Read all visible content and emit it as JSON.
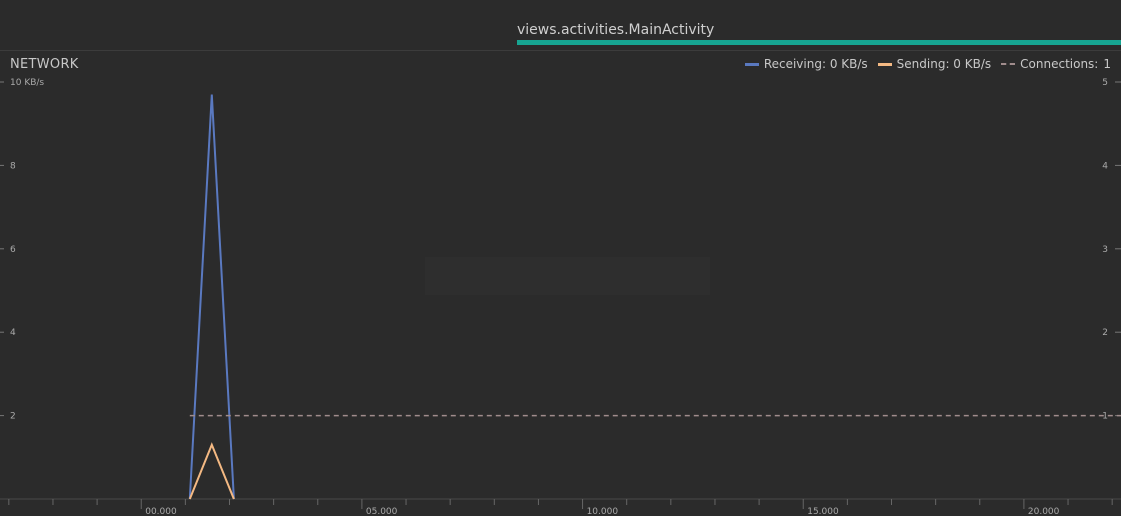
{
  "header": {
    "activity": "views.activities.MainActivity"
  },
  "colors": {
    "receiving": "#5a79c0",
    "sending": "#f4b983",
    "connections": "#a08c8c",
    "activity_bar": "#17a592"
  },
  "legend": {
    "receiving": "Receiving: 0 KB/s",
    "sending": "Sending: 0 KB/s",
    "connections_label": "Connections:",
    "connections_value": "1"
  },
  "chart_data": {
    "type": "line",
    "title": "NETWORK",
    "left_axis": {
      "ylim": [
        0,
        12
      ],
      "ticks": [
        {
          "value": 2,
          "label": "2"
        },
        {
          "value": 4,
          "label": "4"
        },
        {
          "value": 6,
          "label": "6"
        },
        {
          "value": 8,
          "label": "8"
        },
        {
          "value": 10,
          "label": "10 KB/s"
        }
      ]
    },
    "right_axis": {
      "ylim": [
        0,
        5
      ],
      "ticks": [
        {
          "value": 1,
          "label": "1"
        },
        {
          "value": 2,
          "label": "2"
        },
        {
          "value": 3,
          "label": "3"
        },
        {
          "value": 4,
          "label": "4"
        },
        {
          "value": 5,
          "label": "5"
        }
      ]
    },
    "x_axis": {
      "range": [
        -3.2,
        22.2
      ],
      "major_ticks": [
        {
          "value": 0,
          "label": "00.000"
        },
        {
          "value": 5,
          "label": "05.000"
        },
        {
          "value": 10,
          "label": "10.000"
        },
        {
          "value": 15,
          "label": "15.000"
        },
        {
          "value": 20,
          "label": "20.000"
        }
      ],
      "minor_step": 1
    },
    "series": [
      {
        "name": "Receiving",
        "axis": "left",
        "x": [
          1.1,
          1.6,
          2.1
        ],
        "y": [
          0,
          9.7,
          0
        ]
      },
      {
        "name": "Sending",
        "axis": "left",
        "x": [
          1.1,
          1.6,
          2.1
        ],
        "y": [
          0,
          1.3,
          0
        ]
      },
      {
        "name": "Connections",
        "axis": "right",
        "style": "dashed",
        "x": [
          1.1,
          22.2
        ],
        "y": [
          1,
          1
        ]
      }
    ]
  }
}
